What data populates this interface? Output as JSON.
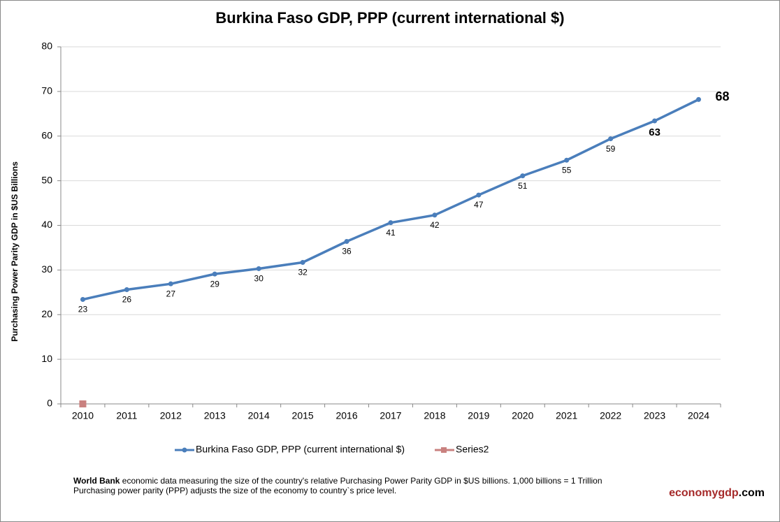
{
  "chart_data": {
    "type": "line",
    "title": "Burkina Faso GDP, PPP (current international $)",
    "y_label": "Purchasing Power Parity GDP in $US Billions",
    "categories": [
      "2010",
      "2011",
      "2012",
      "2013",
      "2014",
      "2015",
      "2016",
      "2017",
      "2018",
      "2019",
      "2020",
      "2021",
      "2022",
      "2023",
      "2024"
    ],
    "series": [
      {
        "name": "Burkina Faso GDP, PPP (current international $)",
        "color": "#4a7ebb",
        "values": [
          23.4,
          25.6,
          26.9,
          29.1,
          30.3,
          31.7,
          36.4,
          40.6,
          42.3,
          46.8,
          51.1,
          54.6,
          59.4,
          63.4,
          68.2
        ],
        "value_labels": [
          "23",
          "26",
          "27",
          "29",
          "30",
          "32",
          "36",
          "41",
          "42",
          "47",
          "51",
          "55",
          "59",
          "63",
          "68"
        ]
      },
      {
        "name": "Series2",
        "color": "#c9817f",
        "values": [
          0,
          null,
          null,
          null,
          null,
          null,
          null,
          null,
          null,
          null,
          null,
          null,
          null,
          null,
          null
        ]
      }
    ],
    "ylim": [
      0,
      80
    ],
    "yticks": [
      0,
      10,
      20,
      30,
      40,
      50,
      60,
      70,
      80
    ],
    "grid": true,
    "legend": "bottom"
  },
  "footer": {
    "source": "World Bank",
    "note_line1": " economic data  measuring the size of the country's relative  Purchasing Power Parity GDP in $US billions. 1,000 billions = 1 Trillion",
    "note_line2": "Purchasing power parity (PPP) adjusts the size of the economy to country`s price level.",
    "brand_main": "economygdp",
    "brand_suffix": ".com"
  }
}
